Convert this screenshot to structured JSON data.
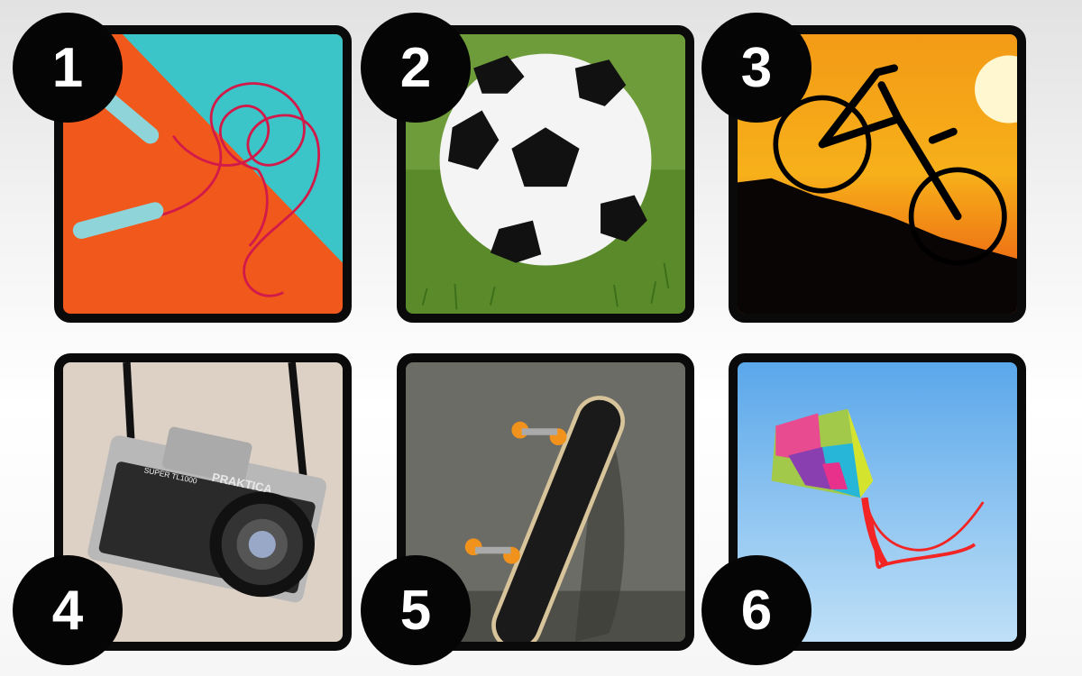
{
  "items": [
    {
      "number": "1",
      "icon": "jump-rope-icon"
    },
    {
      "number": "2",
      "icon": "soccer-ball-icon"
    },
    {
      "number": "3",
      "icon": "bicycle-icon"
    },
    {
      "number": "4",
      "icon": "camera-icon"
    },
    {
      "number": "5",
      "icon": "skateboard-icon"
    },
    {
      "number": "6",
      "icon": "kite-icon"
    }
  ],
  "camera": {
    "brand": "PRAKTICA",
    "model": "SUPER TL1000"
  },
  "colors": {
    "badge": "#050505",
    "frame": "#0a0a0a"
  }
}
